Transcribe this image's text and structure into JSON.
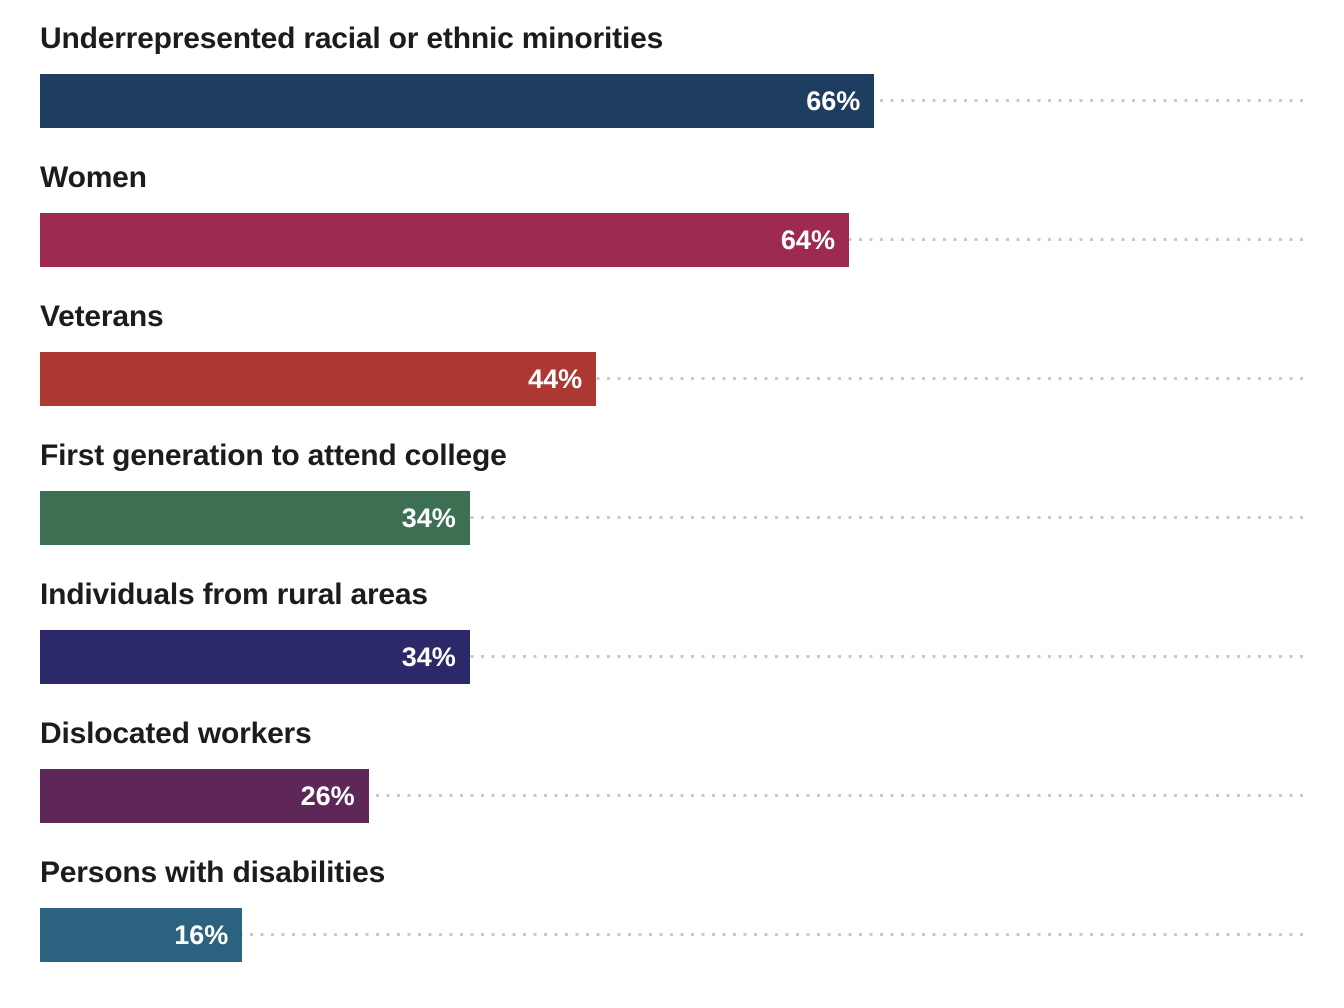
{
  "chart_data": {
    "type": "bar",
    "orientation": "horizontal",
    "title": "",
    "xlabel": "",
    "ylabel": "",
    "xlim": [
      0,
      100
    ],
    "grid": "dotted leader lines to right edge per bar",
    "legend": "none",
    "categories": [
      "Underrepresented racial or ethnic minorities",
      "Women",
      "Veterans",
      "First generation to attend college",
      "Individuals from rural areas",
      "Dislocated workers",
      "Persons with disabilities"
    ],
    "values": [
      66,
      64,
      44,
      34,
      34,
      26,
      16
    ],
    "value_labels": [
      "66%",
      "64%",
      "44%",
      "34%",
      "34%",
      "26%",
      "16%"
    ],
    "bar_colors": [
      "#1e3e61",
      "#9e2a51",
      "#ab3831",
      "#3d6f52",
      "#2c296a",
      "#5f2758",
      "#2b627f"
    ],
    "label_color": "#1c1c1c",
    "value_label_color": "#ffffff",
    "dotted_line_color": "#c9c9c9",
    "background_color": "#ffffff"
  }
}
